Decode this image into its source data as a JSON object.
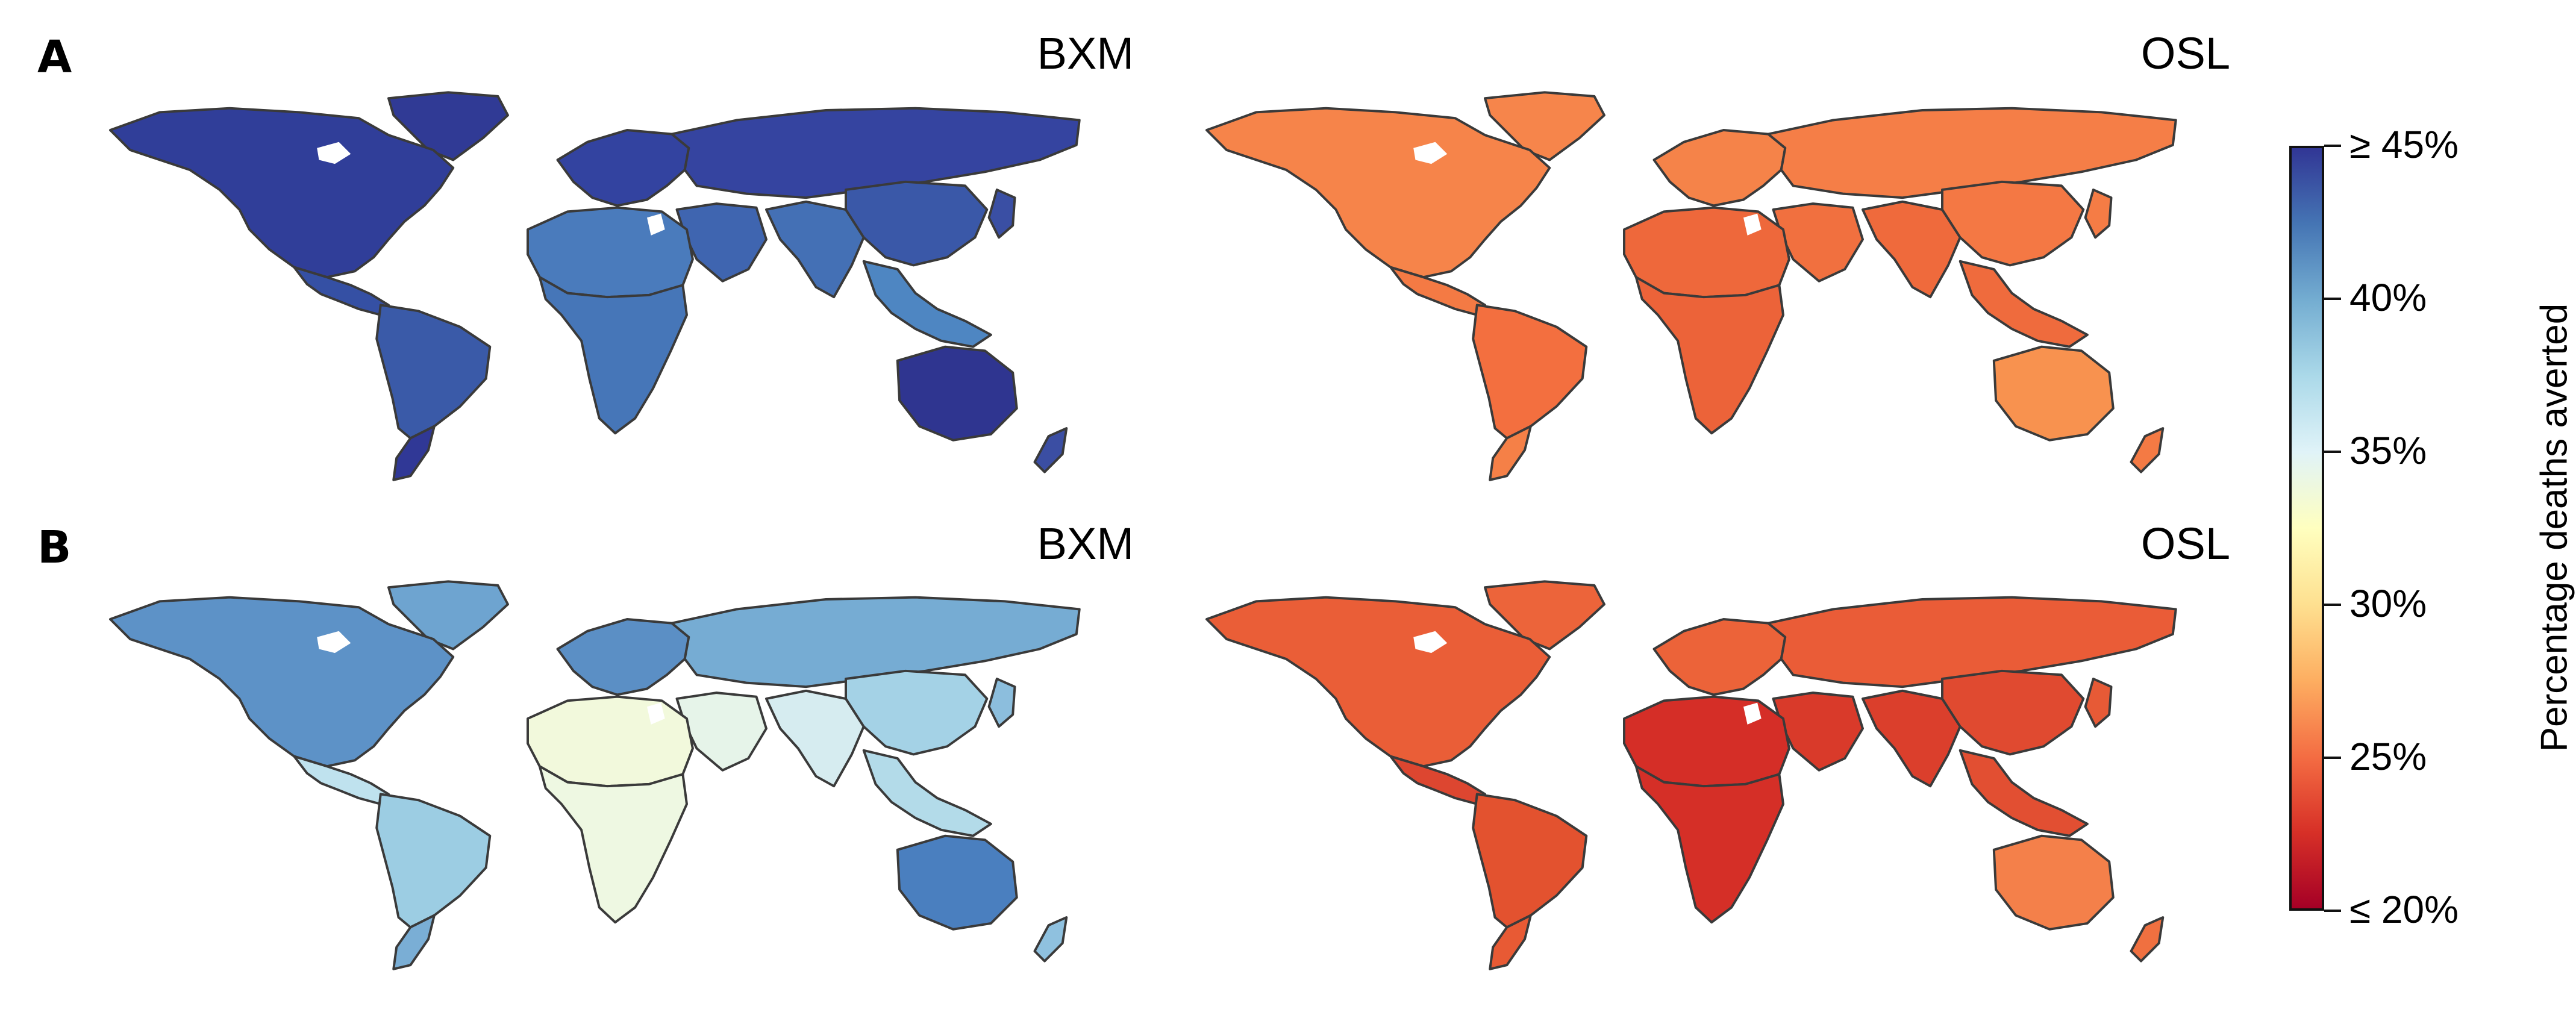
{
  "panels": [
    {
      "letter": "A",
      "maps": [
        {
          "title": "BXM",
          "colors": {
            "north_america": "#303e99",
            "greenland": "#303a95",
            "central_america": "#3550a4",
            "south_america": "#3a5aa8",
            "patagonia": "#303896",
            "europe": "#3343a0",
            "russia_asia": "#3544a0",
            "middle_east": "#3f65b0",
            "north_africa": "#4a7bbc",
            "africa": "#4676b8",
            "south_asia": "#4470b5",
            "east_asia": "#3a58a8",
            "southeast_asia": "#4e86c2",
            "australia": "#2f3590",
            "new_zealand": "#3b4ea3",
            "japan": "#3a4fa4"
          }
        },
        {
          "title": "OSL",
          "colors": {
            "north_america": "#f6844a",
            "greenland": "#f6854b",
            "central_america": "#f47a44",
            "south_america": "#f36f3f",
            "patagonia": "#f58047",
            "europe": "#f58349",
            "russia_asia": "#f57e47",
            "middle_east": "#f1703f",
            "north_africa": "#ee683b",
            "africa": "#ec6339",
            "south_asia": "#ef6a3c",
            "east_asia": "#f47844",
            "southeast_asia": "#ef6b3d",
            "australia": "#f8924f",
            "new_zealand": "#f47a44",
            "japan": "#f57c45"
          }
        }
      ]
    },
    {
      "letter": "B",
      "maps": [
        {
          "title": "BXM",
          "colors": {
            "north_america": "#5d92c7",
            "greenland": "#6ea4d0",
            "central_america": "#bfe2ee",
            "south_america": "#9ccde3",
            "patagonia": "#7aaed5",
            "europe": "#5b8fc5",
            "russia_asia": "#76acd3",
            "middle_east": "#e6f4e9",
            "north_africa": "#f2f9dc",
            "africa": "#eef8e2",
            "south_asia": "#d6ecf0",
            "east_asia": "#a4d2e6",
            "southeast_asia": "#b3dbe9",
            "australia": "#4a7fbf",
            "new_zealand": "#8fc1df",
            "japan": "#8cbedd"
          }
        },
        {
          "title": "OSL",
          "colors": {
            "north_america": "#ea5e37",
            "greenland": "#ec643a",
            "central_america": "#dd4630",
            "south_america": "#e3522f",
            "patagonia": "#e85a34",
            "europe": "#ec6339",
            "russia_asia": "#ea5c37",
            "middle_east": "#d93a2a",
            "north_africa": "#d52e27",
            "africa": "#d52f27",
            "south_asia": "#db3f2c",
            "east_asia": "#e04a30",
            "southeast_asia": "#e24f32",
            "australia": "#f4804a",
            "new_zealand": "#f07040",
            "japan": "#e75a36"
          }
        }
      ]
    }
  ],
  "colorbar": {
    "title": "Percentage deaths averted",
    "range": [
      20,
      45
    ],
    "ticks": [
      {
        "value": 45,
        "label": "≥ 45%"
      },
      {
        "value": 40,
        "label": "40%"
      },
      {
        "value": 35,
        "label": "35%"
      },
      {
        "value": 30,
        "label": "30%"
      },
      {
        "value": 25,
        "label": "25%"
      },
      {
        "value": 20,
        "label": "≤ 20%"
      }
    ],
    "colormap": "RdYlBu"
  }
}
